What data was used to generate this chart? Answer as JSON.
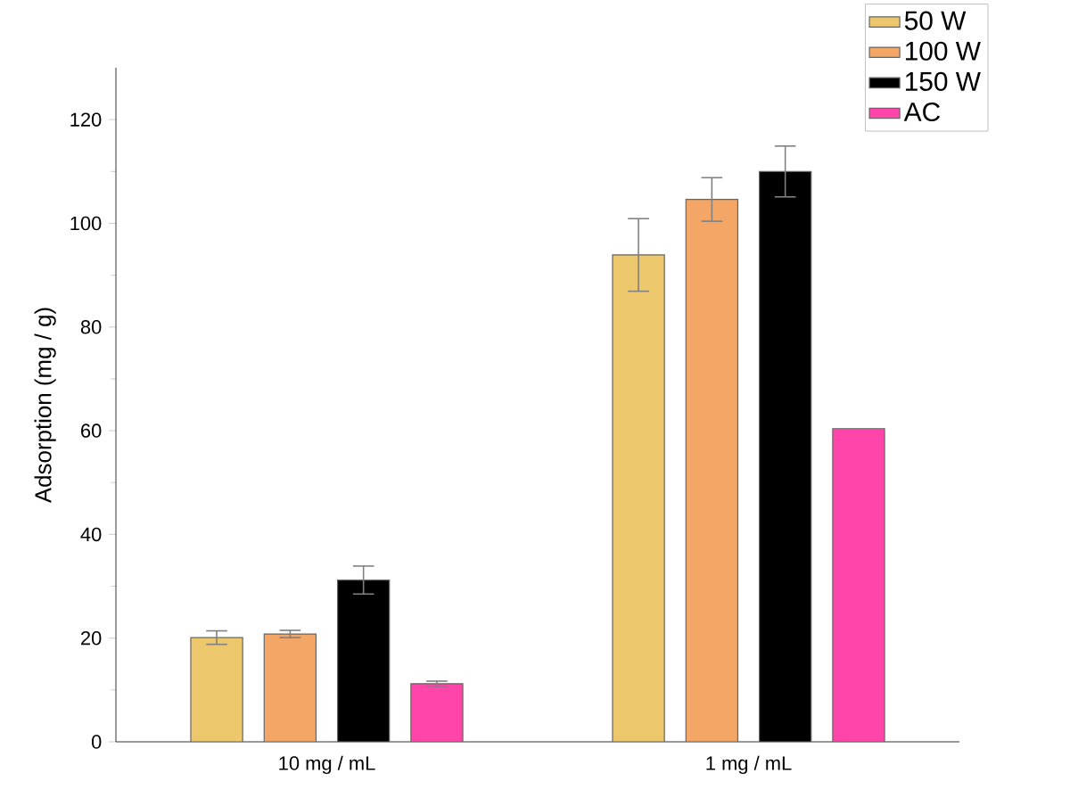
{
  "chart_data": {
    "type": "bar",
    "ylabel": "Adsorption (mg / g)",
    "categories": [
      "10 mg / mL",
      "1 mg / mL"
    ],
    "series": [
      {
        "name": "50 W",
        "color": "#edc76b",
        "values": [
          20.1,
          93.9
        ],
        "errors": [
          1.3,
          7
        ]
      },
      {
        "name": "100 W",
        "color": "#f4a666",
        "values": [
          20.8,
          104.6
        ],
        "errors": [
          0.7,
          4.2
        ]
      },
      {
        "name": "150 W",
        "color": "#000000",
        "values": [
          31.2,
          110
        ],
        "errors": [
          2.7,
          4.9
        ]
      },
      {
        "name": "AC",
        "color": "#ff45aa",
        "values": [
          11.2,
          60.4
        ],
        "errors": [
          0.5,
          null
        ]
      }
    ],
    "ylim": [
      0,
      130
    ],
    "yticks": [
      0,
      20,
      40,
      60,
      80,
      100,
      120
    ],
    "legend": "top right",
    "grid": false
  }
}
